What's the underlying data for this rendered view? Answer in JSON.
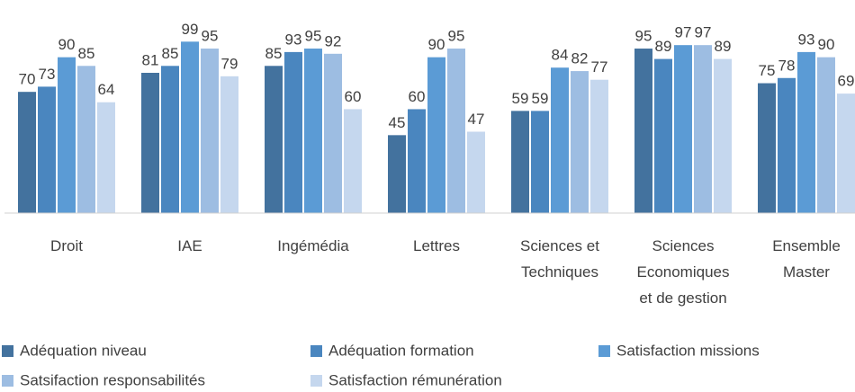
{
  "chart_data": {
    "type": "bar",
    "categories": [
      "Droit",
      "IAE",
      "Ingémédia",
      "Lettres",
      "Sciences et Techniques",
      "Sciences Economiques et de gestion",
      "Ensemble Master"
    ],
    "series": [
      {
        "name": "Adéquation niveau",
        "color": "#43729e",
        "values": [
          70,
          81,
          85,
          45,
          59,
          95,
          75
        ]
      },
      {
        "name": "Adéquation formation",
        "color": "#4a86bf",
        "values": [
          73,
          85,
          93,
          60,
          59,
          89,
          78
        ]
      },
      {
        "name": "Satisfaction missions",
        "color": "#5b9bd5",
        "values": [
          90,
          99,
          95,
          90,
          84,
          97,
          93
        ]
      },
      {
        "name": "Satsifaction responsabilités",
        "color": "#9dbde2",
        "values": [
          85,
          95,
          92,
          95,
          82,
          97,
          90
        ]
      },
      {
        "name": "Satisfaction rémunération",
        "color": "#c5d7ee",
        "values": [
          64,
          79,
          60,
          47,
          77,
          89,
          69
        ]
      }
    ],
    "ylim": [
      0,
      100
    ]
  }
}
